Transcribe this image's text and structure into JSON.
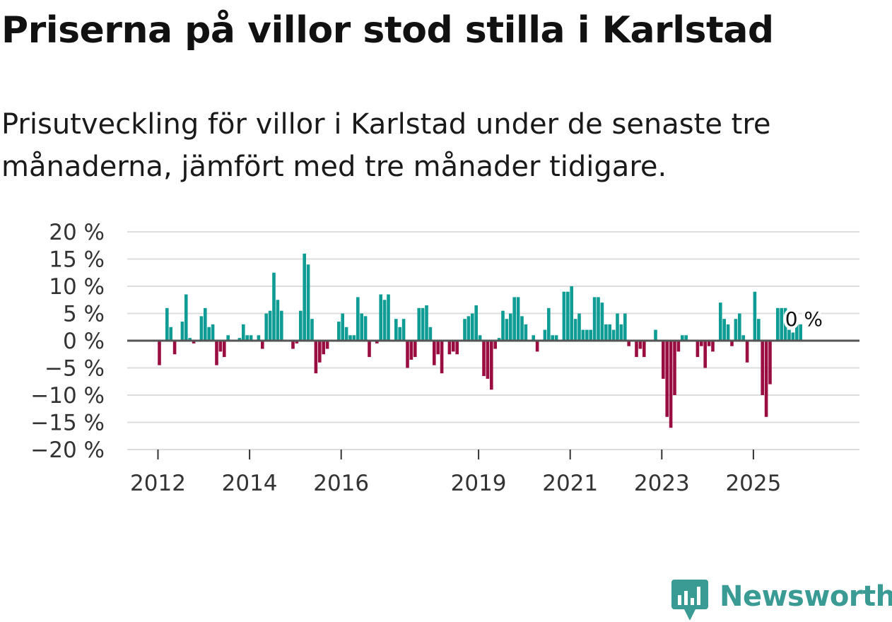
{
  "header": {
    "title": "Priserna på villor stod stilla i Karlstad",
    "subtitle": "Prisutveckling för villor i Karlstad under de senaste tre månaderna, jämfört med tre månader tidigare."
  },
  "colors": {
    "positive": "#0e9c94",
    "negative": "#9a0d40",
    "grid": "#dddddd",
    "zero_line": "#555555",
    "brand": "#3a9b94"
  },
  "logo": {
    "text": "Newsworthy",
    "icon": "newsworthy-chart-bubble-icon"
  },
  "chart_data": {
    "type": "bar",
    "title": "Priserna på villor stod stilla i Karlstad",
    "xlabel": "",
    "ylabel": "",
    "ylim": [
      -20,
      20
    ],
    "y_ticks": [
      {
        "value": 20,
        "label": "20 %"
      },
      {
        "value": 15,
        "label": "15 %"
      },
      {
        "value": 10,
        "label": "10 %"
      },
      {
        "value": 5,
        "label": "5 %"
      },
      {
        "value": 0,
        "label": "0 %"
      },
      {
        "value": -5,
        "label": "−5 %"
      },
      {
        "value": -10,
        "label": "−10 %"
      },
      {
        "value": -15,
        "label": "−15 %"
      },
      {
        "value": -20,
        "label": "−20 %"
      }
    ],
    "x_ticks": [
      {
        "year": 2012,
        "label": "2012"
      },
      {
        "year": 2014,
        "label": "2014"
      },
      {
        "year": 2016,
        "label": "2016"
      },
      {
        "year": 2019,
        "label": "2019"
      },
      {
        "year": 2021,
        "label": "2021"
      },
      {
        "year": 2023,
        "label": "2023"
      },
      {
        "year": 2025,
        "label": "2025"
      }
    ],
    "start": "2011-05",
    "frequency": "monthly",
    "unit": "%",
    "series": [
      {
        "name": "Prisutveckling",
        "values": [
          0,
          0,
          0,
          0,
          0,
          0,
          0,
          0,
          -4.5,
          0,
          6,
          2.5,
          -2.5,
          0,
          3.5,
          8.5,
          0.5,
          -0.5,
          0,
          4.5,
          6,
          2.5,
          3,
          -4.5,
          -2,
          -3,
          1,
          0,
          0,
          0.5,
          3,
          1,
          1,
          0,
          1,
          -1.5,
          5,
          5.5,
          12.5,
          7.5,
          5.5,
          0,
          0,
          -1.5,
          -0.5,
          5.5,
          16,
          14,
          4,
          -6,
          -4,
          -2.5,
          -1.5,
          0,
          0,
          3.5,
          5,
          2.5,
          1,
          1,
          8,
          5,
          4.5,
          -3,
          0,
          -0.5,
          8.5,
          7.5,
          8.5,
          0,
          4,
          2.5,
          4,
          -5,
          -3.5,
          -3,
          6,
          6,
          6.5,
          2.5,
          -4.5,
          -2.5,
          -6,
          0,
          -2.5,
          -2,
          -2.5,
          0,
          4,
          4.5,
          5,
          6.5,
          1,
          -6.5,
          -7,
          -9,
          -1.5,
          0.5,
          5.5,
          4,
          5,
          8,
          8,
          4.5,
          3,
          0,
          1,
          -2,
          0,
          2,
          6,
          1,
          1,
          0,
          9,
          9,
          10,
          4,
          5,
          2,
          2,
          2,
          8,
          8,
          7,
          3,
          3,
          2,
          5,
          3,
          5,
          -1,
          0,
          -3,
          -1.5,
          -3,
          0,
          0,
          2,
          0,
          -7,
          -14,
          -16,
          -10,
          -2,
          1,
          1,
          0,
          0,
          -3,
          -1,
          -5,
          -1,
          -2,
          0,
          7,
          4,
          3,
          -1,
          4,
          5,
          1,
          -4,
          0,
          9,
          4,
          -10,
          -14,
          -8,
          0,
          6,
          6,
          6,
          2,
          1.5,
          3,
          3
        ]
      }
    ],
    "annotation": {
      "text": "0 %",
      "value": 0
    }
  }
}
